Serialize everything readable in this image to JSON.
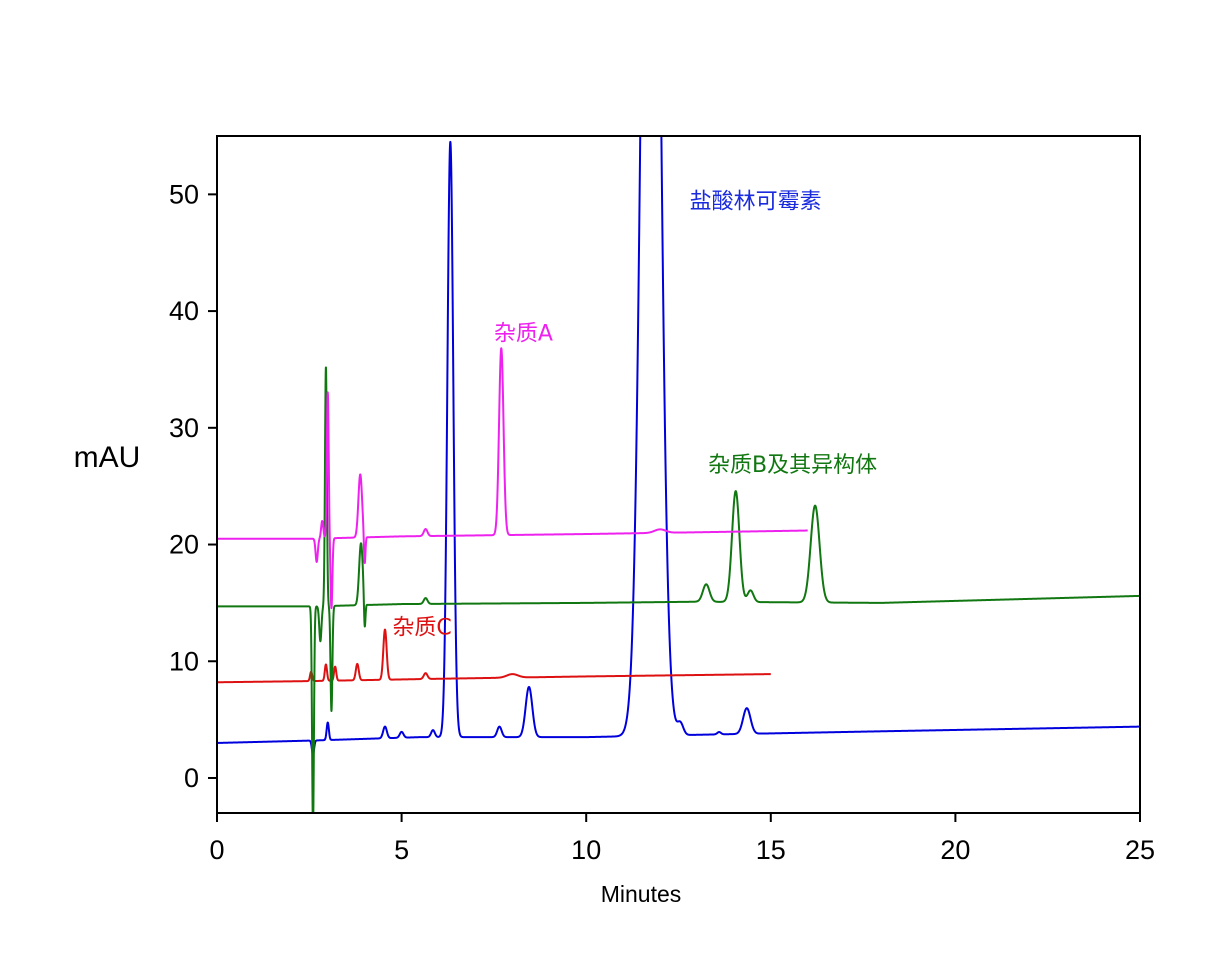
{
  "chart_data": {
    "type": "line",
    "title": "",
    "xlabel": "Minutes",
    "ylabel": "mAU",
    "xlim": [
      0,
      25
    ],
    "ylim": [
      -3,
      55
    ],
    "xticks": [
      0,
      5,
      10,
      15,
      20,
      25
    ],
    "yticks": [
      0,
      10,
      20,
      30,
      40,
      50
    ],
    "grid": false,
    "series": [
      {
        "color": "#0000dd",
        "baseline": [
          [
            0,
            3.0
          ],
          [
            2.5,
            3.2
          ],
          [
            5.5,
            3.5
          ],
          [
            10,
            3.5
          ],
          [
            13,
            3.7
          ],
          [
            18,
            4.0
          ],
          [
            25,
            4.4
          ]
        ],
        "peaks": [
          {
            "t": 2.6,
            "h": -1.2,
            "w": 0.03
          },
          {
            "t": 3.0,
            "h": 1.5,
            "w": 0.03
          },
          {
            "t": 4.55,
            "h": 1.0,
            "w": 0.05
          },
          {
            "t": 5.0,
            "h": 0.5,
            "w": 0.05
          },
          {
            "t": 5.85,
            "h": 0.6,
            "w": 0.05
          },
          {
            "t": 6.32,
            "h": 51.0,
            "w": 0.08
          },
          {
            "t": 7.65,
            "h": 0.9,
            "w": 0.06
          },
          {
            "t": 8.45,
            "h": 4.3,
            "w": 0.09
          },
          {
            "t": 11.75,
            "h": 120,
            "w": 0.22
          },
          {
            "t": 12.55,
            "h": 1.0,
            "w": 0.08
          },
          {
            "t": 13.6,
            "h": 0.2,
            "w": 0.05
          },
          {
            "t": 14.35,
            "h": 2.2,
            "w": 0.1
          }
        ]
      },
      {
        "color": "#dd1111",
        "xmax": 15,
        "baseline": [
          [
            0,
            8.2
          ],
          [
            2.5,
            8.3
          ],
          [
            6,
            8.5
          ],
          [
            10,
            8.7
          ],
          [
            15,
            8.9
          ]
        ],
        "peaks": [
          {
            "t": 2.55,
            "h": 0.8,
            "w": 0.03
          },
          {
            "t": 2.95,
            "h": 1.4,
            "w": 0.03
          },
          {
            "t": 3.2,
            "h": 1.2,
            "w": 0.03
          },
          {
            "t": 3.8,
            "h": 1.4,
            "w": 0.04
          },
          {
            "t": 4.55,
            "h": 4.3,
            "w": 0.045
          },
          {
            "t": 5.65,
            "h": 0.5,
            "w": 0.05
          },
          {
            "t": 8.0,
            "h": 0.3,
            "w": 0.15
          }
        ]
      },
      {
        "color": "#117711",
        "baseline": [
          [
            0,
            14.7
          ],
          [
            2.6,
            14.7
          ],
          [
            5,
            14.9
          ],
          [
            10,
            15.0
          ],
          [
            13,
            15.1
          ],
          [
            18,
            15.0
          ],
          [
            25,
            15.6
          ]
        ],
        "peaks": [
          {
            "t": 2.6,
            "h": -19.0,
            "w": 0.025
          },
          {
            "t": 2.8,
            "h": -3.0,
            "w": 0.03
          },
          {
            "t": 2.95,
            "h": 20.5,
            "w": 0.025
          },
          {
            "t": 3.1,
            "h": -9.0,
            "w": 0.025
          },
          {
            "t": 3.9,
            "h": 5.3,
            "w": 0.05
          },
          {
            "t": 4.0,
            "h": -2.5,
            "w": 0.02
          },
          {
            "t": 5.65,
            "h": 0.5,
            "w": 0.05
          },
          {
            "t": 13.25,
            "h": 1.5,
            "w": 0.09
          },
          {
            "t": 14.05,
            "h": 9.5,
            "w": 0.1
          },
          {
            "t": 14.45,
            "h": 1.0,
            "w": 0.08
          },
          {
            "t": 16.2,
            "h": 8.3,
            "w": 0.12
          }
        ]
      },
      {
        "color": "#ee22ee",
        "xmax": 16.0,
        "baseline": [
          [
            0,
            20.5
          ],
          [
            2.6,
            20.5
          ],
          [
            5,
            20.7
          ],
          [
            10,
            20.9
          ],
          [
            16,
            21.2
          ]
        ],
        "peaks": [
          {
            "t": 2.7,
            "h": -2.0,
            "w": 0.03
          },
          {
            "t": 2.85,
            "h": 1.5,
            "w": 0.03
          },
          {
            "t": 3.0,
            "h": 12.5,
            "w": 0.025
          },
          {
            "t": 3.1,
            "h": -6.0,
            "w": 0.025
          },
          {
            "t": 3.88,
            "h": 5.4,
            "w": 0.05
          },
          {
            "t": 4.0,
            "h": -2.5,
            "w": 0.02
          },
          {
            "t": 5.65,
            "h": 0.6,
            "w": 0.05
          },
          {
            "t": 7.7,
            "h": 16.0,
            "w": 0.06
          },
          {
            "t": 12.0,
            "h": 0.3,
            "w": 0.15
          }
        ]
      }
    ],
    "annotations": [
      {
        "text": "盐酸林可霉素",
        "x": 12.8,
        "y": 48.8,
        "color": "#1a2bdd"
      },
      {
        "text": "杂质A",
        "x": 7.5,
        "y": 37.5,
        "color": "#ee22ee"
      },
      {
        "text": "杂质B及其异构体",
        "x": 13.3,
        "y": 26.2,
        "color": "#117711"
      },
      {
        "text": "杂质C",
        "x": 4.75,
        "y": 12.3,
        "color": "#dd1111"
      }
    ]
  }
}
